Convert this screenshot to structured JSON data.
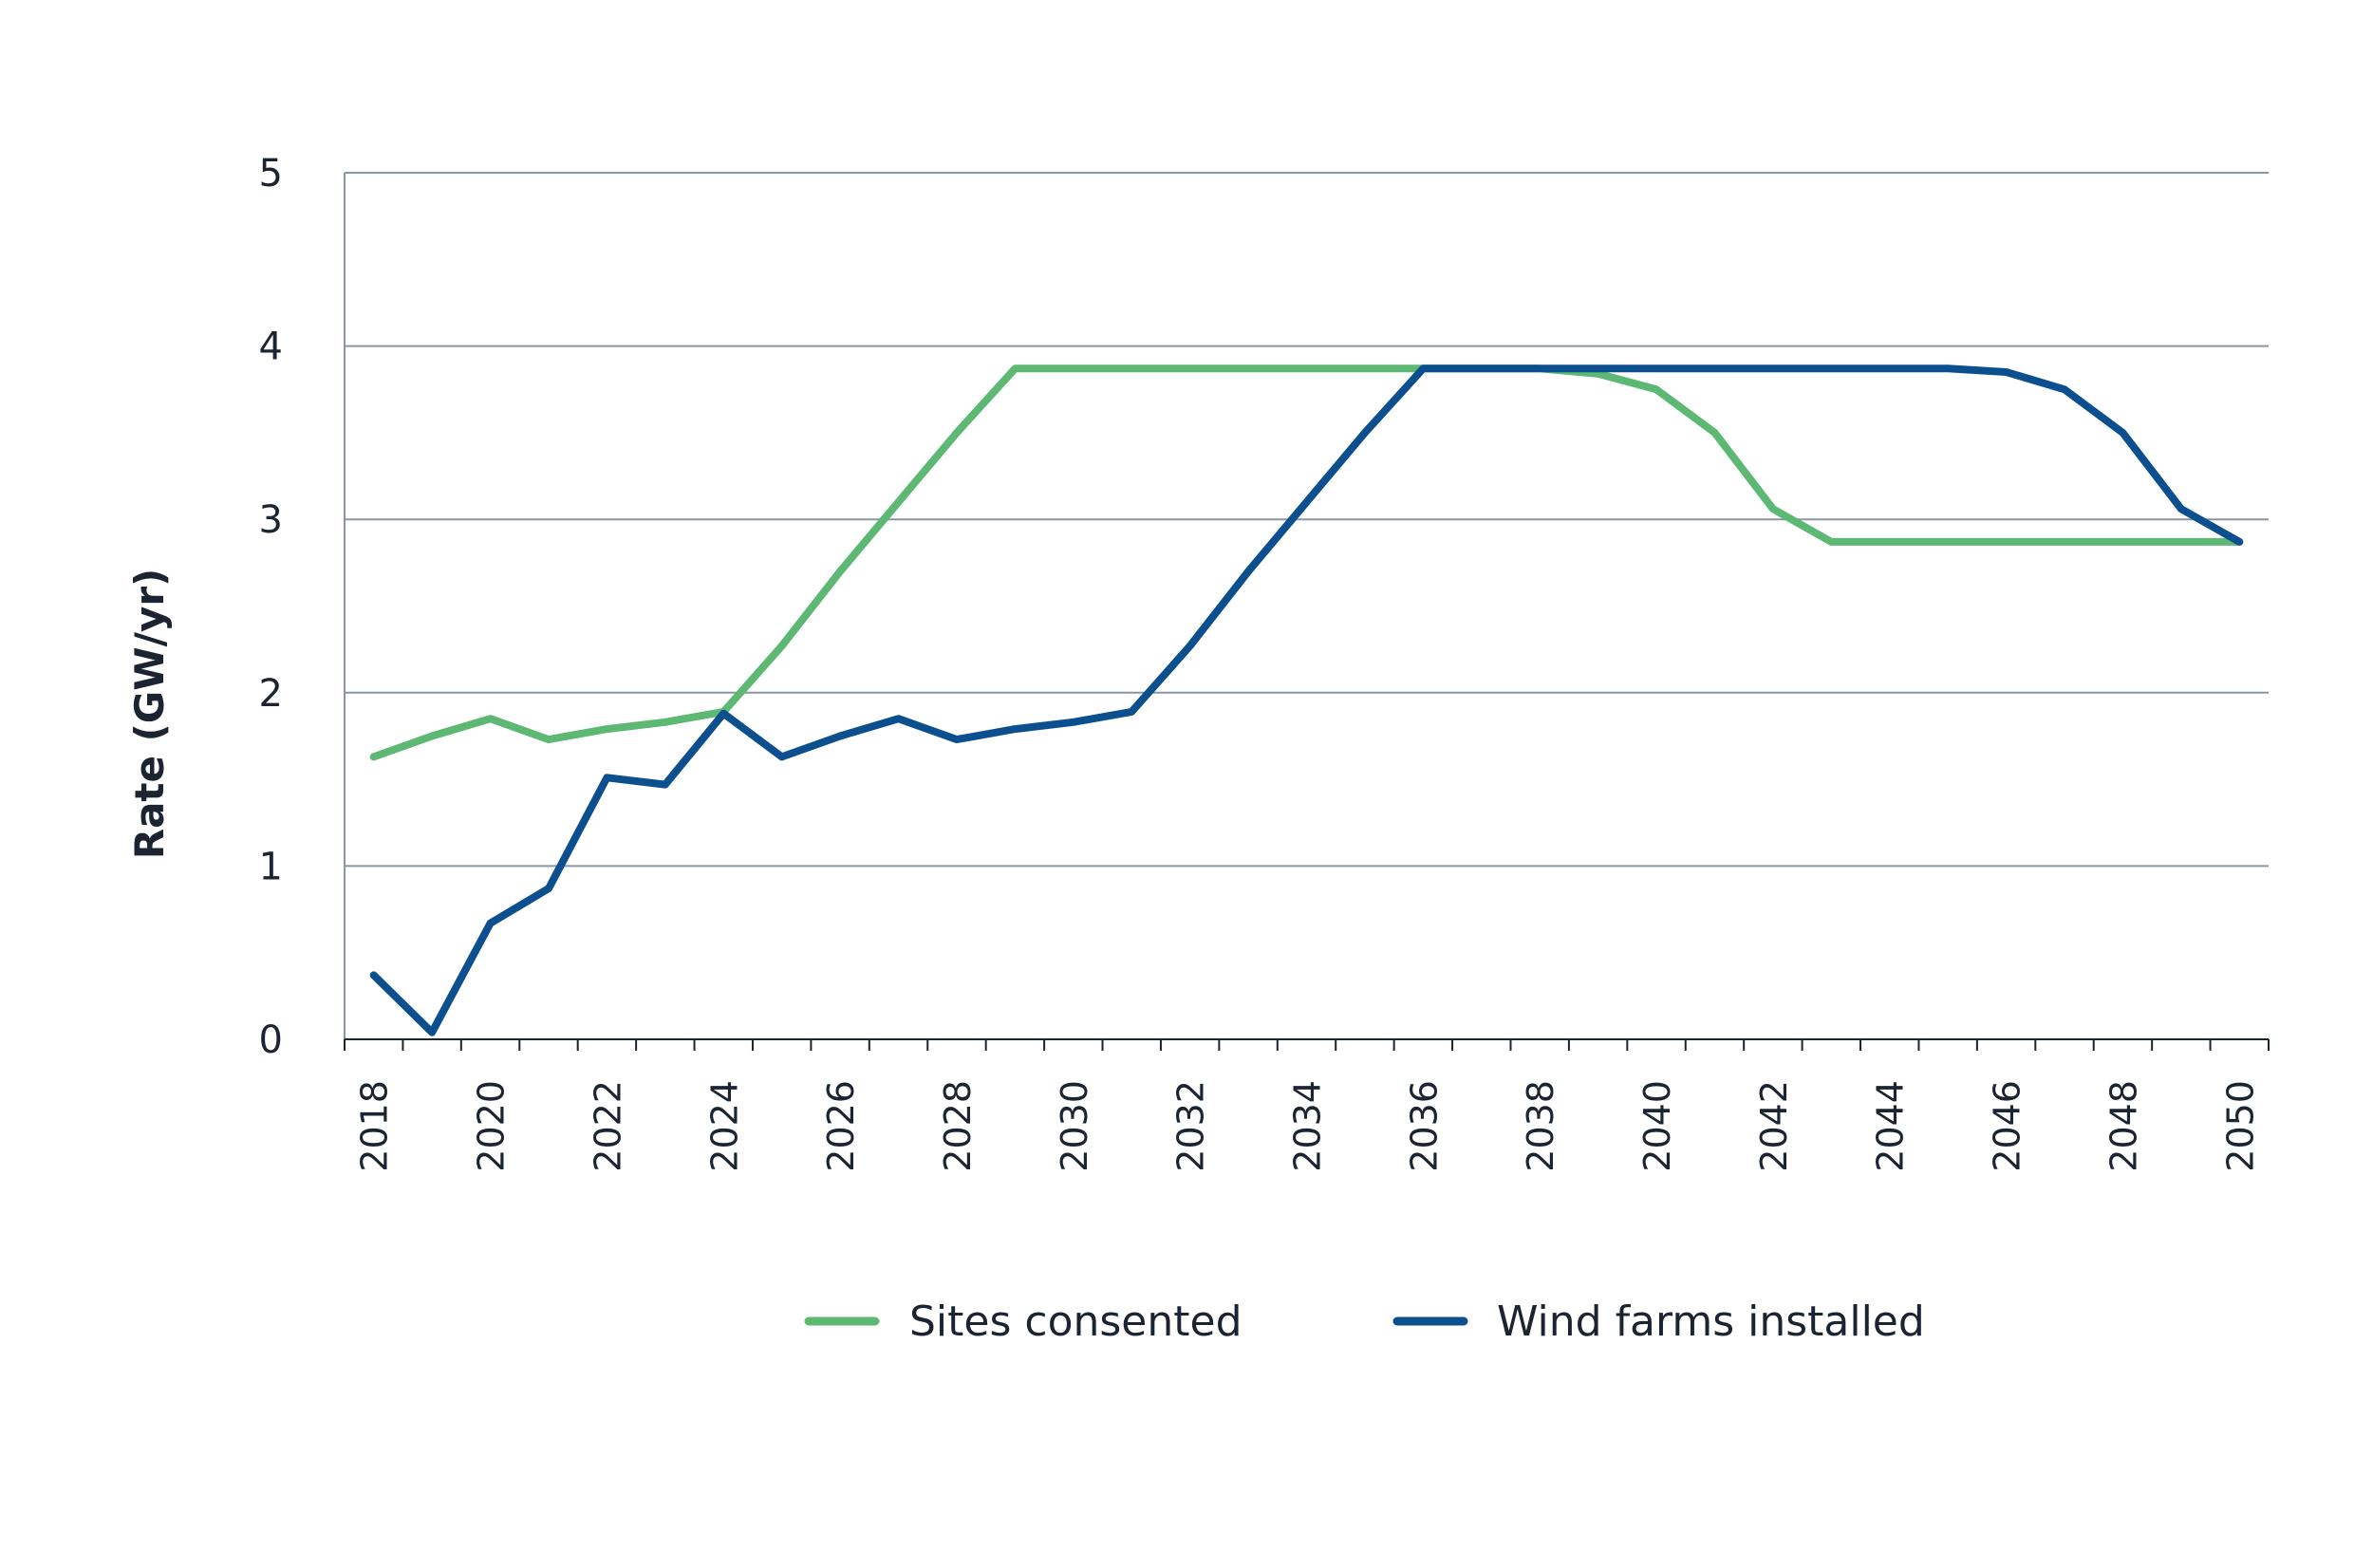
{
  "chart_data": {
    "type": "line",
    "title": "",
    "xlabel": "",
    "ylabel": "Rate (GW/yr)",
    "ylim": [
      0,
      5
    ],
    "yticks": [
      "0",
      "1",
      "2",
      "3",
      "4",
      "5"
    ],
    "xlim": [
      2017.5,
      2050.5
    ],
    "xticks": [
      "2018",
      "2020",
      "2022",
      "2024",
      "2026",
      "2028",
      "2030",
      "2032",
      "2034",
      "2036",
      "2038",
      "2040",
      "2042",
      "2044",
      "2046",
      "2048",
      "2050"
    ],
    "grid": "horizontal",
    "legend_position": "bottom",
    "x": [
      2018,
      2019,
      2020,
      2021,
      2022,
      2023,
      2024,
      2025,
      2026,
      2027,
      2028,
      2029,
      2030,
      2031,
      2032,
      2033,
      2034,
      2035,
      2036,
      2037,
      2038,
      2039,
      2040,
      2041,
      2042,
      2043,
      2044,
      2045,
      2046,
      2047,
      2048,
      2049,
      2050
    ],
    "series": [
      {
        "name": "Sites consented",
        "color": "#5db874",
        "values": [
          1.63,
          1.75,
          1.85,
          1.73,
          1.79,
          1.83,
          1.89,
          2.27,
          2.7,
          3.1,
          3.5,
          3.87,
          3.87,
          3.87,
          3.87,
          3.87,
          3.87,
          3.87,
          3.87,
          3.87,
          3.87,
          3.84,
          3.75,
          3.5,
          3.06,
          2.87,
          2.87,
          2.87,
          2.87,
          2.87,
          2.87,
          2.87,
          2.87
        ]
      },
      {
        "name": "Wind farms installed",
        "color": "#0b4f8f",
        "values": [
          0.37,
          0.04,
          0.67,
          0.87,
          1.51,
          1.47,
          1.88,
          1.63,
          1.75,
          1.85,
          1.73,
          1.79,
          1.83,
          1.89,
          2.27,
          2.7,
          3.1,
          3.5,
          3.87,
          3.87,
          3.87,
          3.87,
          3.87,
          3.87,
          3.87,
          3.87,
          3.87,
          3.87,
          3.85,
          3.75,
          3.5,
          3.06,
          2.87
        ]
      }
    ]
  },
  "style": {
    "gridline_color": "#8a96a6",
    "axis_color": "#1b2430"
  }
}
